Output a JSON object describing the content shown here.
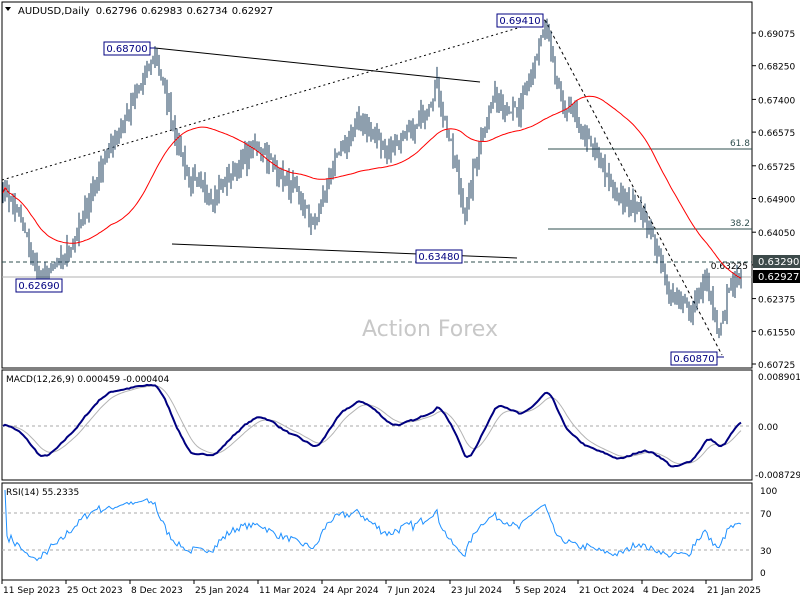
{
  "header": {
    "symbol": "AUDUSD,Daily",
    "open": "0.62796",
    "high": "0.62983",
    "low": "0.62734",
    "close": "0.62927"
  },
  "watermark": "Action Forex",
  "colors": {
    "bars": "#1c3f5e",
    "ma": "#ff0000",
    "macd": "#000080",
    "signal": "#b4b4b4",
    "rsi": "#1e90ff"
  },
  "chart_data": [
    {
      "type": "line",
      "title": "AUDUSD, Daily",
      "xlabel": "",
      "ylabel": "",
      "ylim": [
        0.60725,
        0.69075
      ],
      "x_tick_labels": [
        "11 Sep 2023",
        "25 Oct 2023",
        "8 Dec 2023",
        "25 Jan 2024",
        "11 Mar 2024",
        "24 Apr 2024",
        "7 Jun 2024",
        "23 Jul 2024",
        "5 Sep 2024",
        "21 Oct 2024",
        "4 Dec 2024",
        "21 Jan 2025"
      ],
      "y_tick_labels": [
        "0.69075",
        "0.68250",
        "0.67400",
        "0.66575",
        "0.65725",
        "0.64900",
        "0.64050",
        "0.63225",
        "0.62375",
        "0.61550",
        "0.60725"
      ],
      "approx_close_anchors": [
        [
          0,
          0.6524
        ],
        [
          8,
          0.6448
        ],
        [
          18,
          0.6284
        ],
        [
          28,
          0.6322
        ],
        [
          38,
          0.6411
        ],
        [
          48,
          0.6562
        ],
        [
          63,
          0.6713
        ],
        [
          76,
          0.6852
        ],
        [
          86,
          0.6663
        ],
        [
          93,
          0.6537
        ],
        [
          106,
          0.6499
        ],
        [
          118,
          0.6575
        ],
        [
          128,
          0.6625
        ],
        [
          143,
          0.6524
        ],
        [
          156,
          0.6423
        ],
        [
          163,
          0.6549
        ],
        [
          178,
          0.6688
        ],
        [
          193,
          0.6612
        ],
        [
          206,
          0.6663
        ],
        [
          217,
          0.6776
        ],
        [
          226,
          0.6575
        ],
        [
          231,
          0.6448
        ],
        [
          238,
          0.6625
        ],
        [
          246,
          0.6751
        ],
        [
          258,
          0.67
        ],
        [
          266,
          0.6839
        ],
        [
          271,
          0.692
        ],
        [
          278,
          0.6751
        ],
        [
          288,
          0.6675
        ],
        [
          298,
          0.6587
        ],
        [
          308,
          0.6486
        ],
        [
          318,
          0.6474
        ],
        [
          328,
          0.6347
        ],
        [
          333,
          0.6246
        ],
        [
          343,
          0.6208
        ],
        [
          351,
          0.6284
        ],
        [
          358,
          0.6146
        ],
        [
          363,
          0.6259
        ],
        [
          369,
          0.6293
        ]
      ],
      "annotations": {
        "high_2023": "0.68700",
        "high_2024": "0.69410",
        "low_jul": "0.63480",
        "low_2023": "0.62690",
        "low_2025": "0.60870",
        "fib_618": "61.8",
        "fib_382": "38.2",
        "resistance": "0.63290",
        "current_price": "0.62927"
      },
      "series": [
        {
          "name": "AUDUSD"
        },
        {
          "name": "Moving Average"
        }
      ]
    },
    {
      "type": "line",
      "title": "MACD(12,26,9)",
      "macd_value": "0.000459",
      "signal_value": "-0.000404",
      "legend": "MACD(12,26,9) 0.000459 -0.000404",
      "ylim": [
        -0.008729,
        0.008901
      ],
      "y_tick_labels": [
        "0.008901",
        "0.00",
        "-0.008729"
      ]
    },
    {
      "type": "line",
      "title": "RSI(14)",
      "legend": "RSI(14) 55.2335",
      "ylim": [
        0,
        100
      ],
      "y_tick_labels": [
        "100",
        "70",
        "30",
        "0"
      ]
    }
  ]
}
